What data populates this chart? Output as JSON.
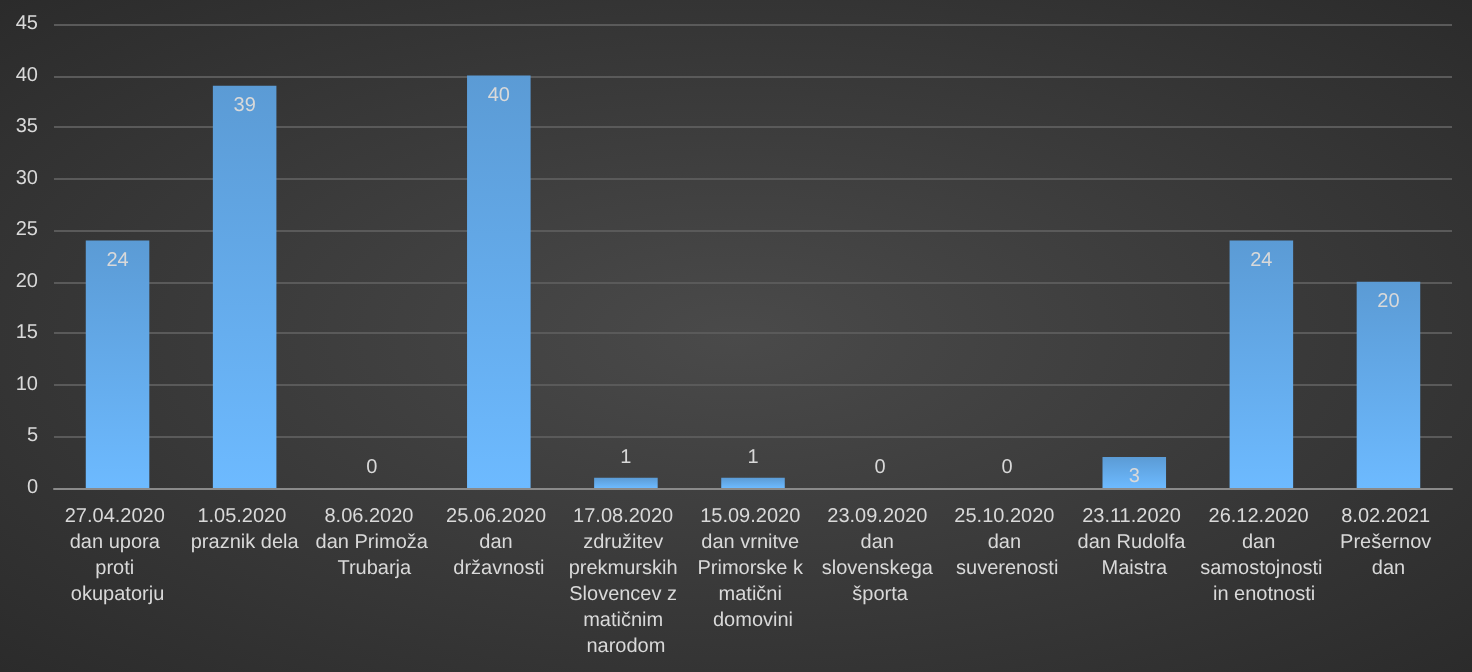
{
  "chart_data": {
    "type": "bar",
    "categories": [
      "27.04.2020 dan upora proti okupatorju",
      "1.05.2020 praznik dela",
      "8.06.2020 dan Primoža Trubarja",
      "25.06.2020 dan državnosti",
      "17.08.2020 združitev prekmurskih Slovencev z matičnim narodom",
      "15.09.2020 dan vrnitve Primorske k matični domovini",
      "23.09.2020 dan slovenskega športa",
      "25.10.2020 dan suverenosti",
      "23.11.2020 dan Rudolfa Maistra",
      "26.12.2020 dan samostojnosti in enotnosti",
      "8.02.2021 Prešernov dan"
    ],
    "values": [
      24,
      39,
      0,
      40,
      1,
      1,
      0,
      0,
      3,
      24,
      20
    ],
    "color": "#5b9bd5",
    "ylim": [
      0,
      45
    ],
    "yticks": [
      0,
      5,
      10,
      15,
      20,
      25,
      30,
      35,
      40,
      45
    ],
    "grid": "y",
    "data_labels": true
  }
}
